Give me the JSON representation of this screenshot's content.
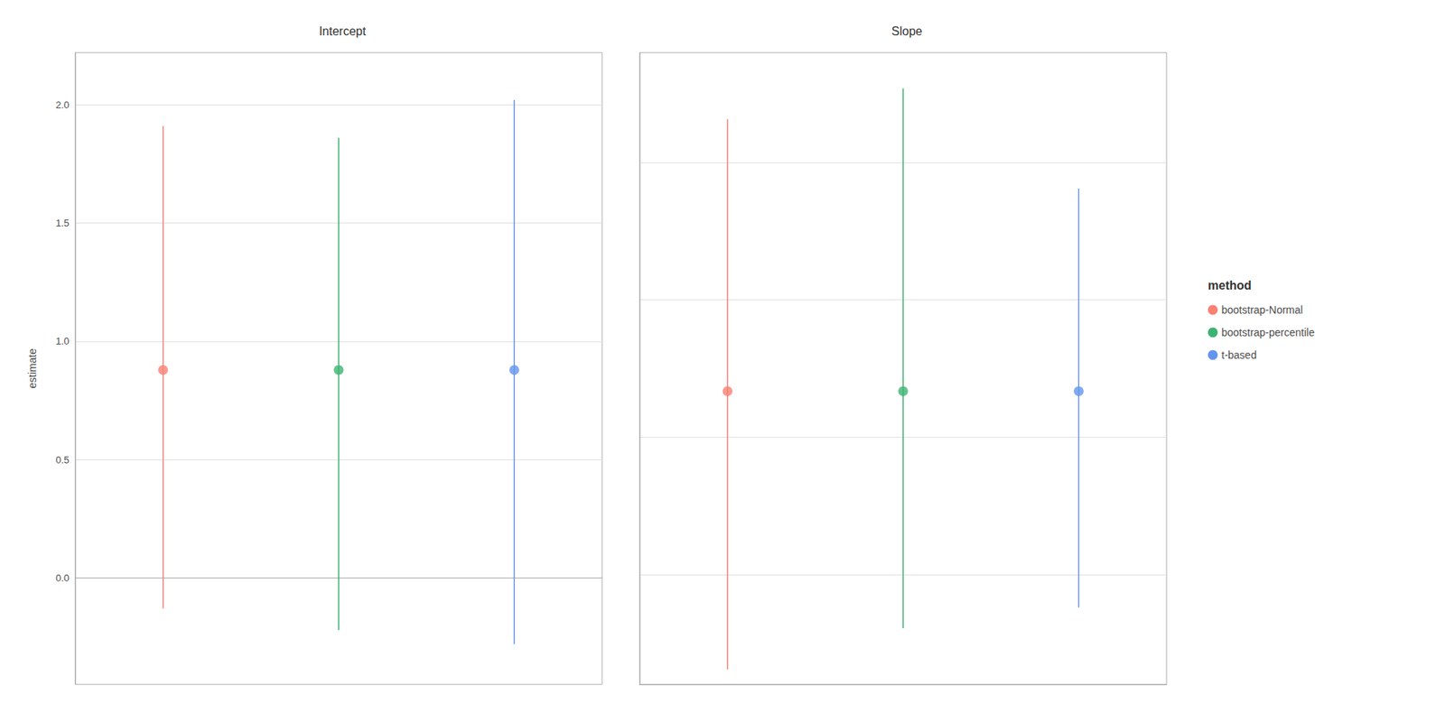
{
  "chart_data": [
    {
      "type": "scatter",
      "title": "Intercept",
      "ylabel": "estimate",
      "series": [
        {
          "name": "bootstrap-Normal",
          "color": "#FA8072",
          "values": [
            0.879
          ],
          "lower": [
            -0.13
          ],
          "upper": [
            1.91
          ]
        },
        {
          "name": "bootstrap-percentile",
          "color": "#3CB371",
          "values": [
            0.879
          ],
          "lower": [
            -0.22
          ],
          "upper": [
            1.86
          ]
        },
        {
          "name": "t-based",
          "color": "#6495ED",
          "values": [
            0.879
          ],
          "lower": [
            -0.28
          ],
          "upper": [
            2.02
          ]
        }
      ],
      "ylim": [
        -0.45,
        2.22
      ],
      "yticks": [
        {
          "value": 0.0,
          "label": "0.0"
        },
        {
          "value": 0.5,
          "label": "0.5"
        },
        {
          "value": 1.0,
          "label": "1.0"
        },
        {
          "value": 1.5,
          "label": "1.5"
        },
        {
          "value": 2.0,
          "label": "2.0"
        }
      ],
      "grid": true,
      "tick_labels": "y"
    },
    {
      "type": "scatter",
      "title": "Slope",
      "series": [
        {
          "name": "bootstrap-Normal",
          "color": "#FA8072",
          "values": [
            10.67
          ],
          "lower": [
            6.62
          ],
          "upper": [
            14.63
          ]
        },
        {
          "name": "bootstrap-percentile",
          "color": "#3CB371",
          "values": [
            10.67
          ],
          "lower": [
            7.22
          ],
          "upper": [
            15.08
          ]
        },
        {
          "name": "t-based",
          "color": "#6495ED",
          "values": [
            10.67
          ],
          "lower": [
            7.52
          ],
          "upper": [
            13.62
          ]
        }
      ],
      "ylim": [
        6.4,
        15.6
      ],
      "yticks": [
        8,
        10,
        12,
        14
      ],
      "grid": true,
      "tick_labels": false,
      "legend": "right",
      "legend_title": "method"
    }
  ]
}
